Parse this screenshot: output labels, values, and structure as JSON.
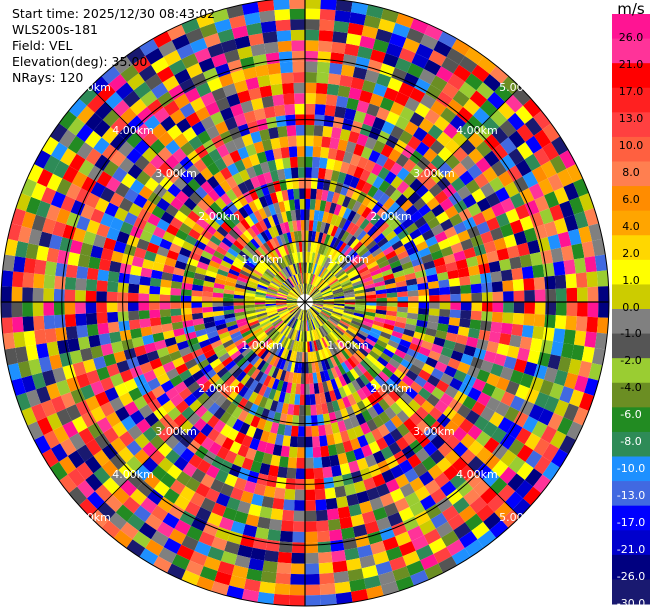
{
  "info": {
    "start_time": "Start time: 2025/12/30 08:43:02",
    "site": "WLS200s-181",
    "field": "Field: VEL",
    "elevation": "Elevation(deg): 35.00",
    "nrays": "NRays: 120"
  },
  "colorbar": {
    "unit": "m/s",
    "colors": [
      "#FF1493",
      "#FF3399",
      "#FF0000",
      "#FF2020",
      "#FF4040",
      "#FF6040",
      "#FF7F50",
      "#FF8C00",
      "#FFA500",
      "#FFD700",
      "#FFFF00",
      "#CCCC00",
      "#808080",
      "#555555",
      "#9ACD32",
      "#6B8E23",
      "#228B22",
      "#2E8B57",
      "#1E90FF",
      "#4169E1",
      "#0000FF",
      "#0000CD",
      "#000080",
      "#191970"
    ],
    "labels": [
      "26.0",
      "21.0",
      "17.0",
      "13.0",
      "10.0",
      "8.0",
      "6.0",
      "4.0",
      "2.0",
      "1.0",
      "0.0",
      "-1.0",
      "-2.0",
      "-4.0",
      "-6.0",
      "-8.0",
      "-10.0",
      "-13.0",
      "-17.0",
      "-21.0",
      "-26.0",
      "-30.0"
    ]
  },
  "chart_data": {
    "type": "heatmap",
    "projection": "polar PPI",
    "field": "VEL",
    "units": "m/s",
    "elevation_deg": 35.0,
    "n_rays": 120,
    "value_range": [
      -30.0,
      26.0
    ],
    "range_rings_km": [
      1,
      2,
      3,
      4,
      5
    ],
    "ring_labels": [
      "1.00km",
      "2.00km",
      "3.00km",
      "4.00km",
      "5.00km"
    ],
    "max_range_km": 5.0
  }
}
